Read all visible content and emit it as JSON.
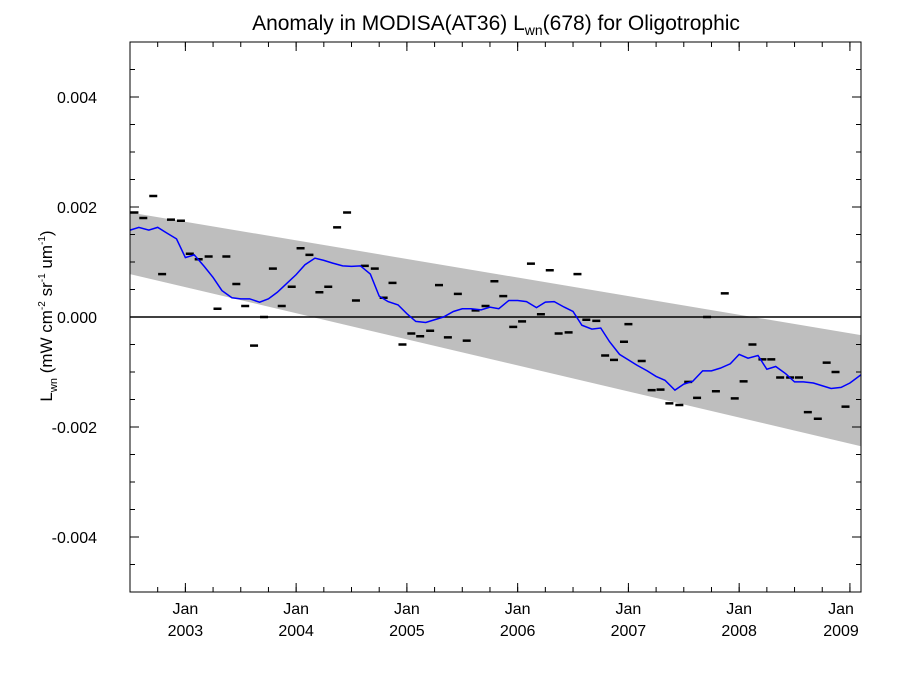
{
  "chart_data": {
    "type": "line",
    "title": "Anomaly in MODISA(AT36) L",
    "title_sub": "wn",
    "title_tail": "(678) for Oligotrophic",
    "ylabel": {
      "main": "L",
      "main_sub": "wn",
      "unit_open": " (mW cm",
      "unit_exp1": "-2",
      "unit_mid": " sr",
      "unit_exp2": "-1",
      "unit_tail": " um",
      "unit_exp3": "-1",
      "unit_close": ")"
    },
    "xlim": [
      2002.5,
      2009.1
    ],
    "ylim": [
      -0.005,
      0.005
    ],
    "y_ticks": [
      -0.004,
      -0.002,
      0.0,
      0.002,
      0.004
    ],
    "y_tick_labels": [
      "-0.004",
      "-0.002",
      "0.000",
      "0.002",
      "0.004"
    ],
    "x_ticks": [
      {
        "x": 2003,
        "month": "Jan",
        "year": "2003"
      },
      {
        "x": 2004,
        "month": "Jan",
        "year": "2004"
      },
      {
        "x": 2005,
        "month": "Jan",
        "year": "2005"
      },
      {
        "x": 2006,
        "month": "Jan",
        "year": "2006"
      },
      {
        "x": 2007,
        "month": "Jan",
        "year": "2007"
      },
      {
        "x": 2008,
        "month": "Jan",
        "year": "2008"
      },
      {
        "x": 2009,
        "month": "Jan",
        "year": "2009"
      }
    ],
    "minor_x_step": 0.25,
    "minor_y_step": 0.0005,
    "band": {
      "x": [
        2002.5,
        2009.1
      ],
      "upper": [
        0.0019,
        -0.00033
      ],
      "lower": [
        0.00078,
        -0.00235
      ],
      "color": "#bebebe"
    },
    "zero_line": 0.0,
    "monthly_anomalies": {
      "color": "#000000",
      "points": [
        [
          2002.54,
          0.0019
        ],
        [
          2002.62,
          0.0018
        ],
        [
          2002.71,
          0.0022
        ],
        [
          2002.79,
          0.00078
        ],
        [
          2002.87,
          0.00177
        ],
        [
          2002.96,
          0.00175
        ],
        [
          2003.04,
          0.00115
        ],
        [
          2003.12,
          0.00105
        ],
        [
          2003.21,
          0.0011
        ],
        [
          2003.29,
          0.00015
        ],
        [
          2003.37,
          0.0011
        ],
        [
          2003.46,
          0.0006
        ],
        [
          2003.54,
          0.0002
        ],
        [
          2003.62,
          -0.00052
        ],
        [
          2003.71,
          0.0
        ],
        [
          2003.79,
          0.00088
        ],
        [
          2003.87,
          0.0002
        ],
        [
          2003.96,
          0.00055
        ],
        [
          2004.04,
          0.00125
        ],
        [
          2004.12,
          0.00113
        ],
        [
          2004.21,
          0.00045
        ],
        [
          2004.29,
          0.00055
        ],
        [
          2004.37,
          0.00163
        ],
        [
          2004.46,
          0.0019
        ],
        [
          2004.54,
          0.0003
        ],
        [
          2004.62,
          0.00093
        ],
        [
          2004.71,
          0.00088
        ],
        [
          2004.79,
          0.00035
        ],
        [
          2004.87,
          0.00062
        ],
        [
          2004.96,
          -0.0005
        ],
        [
          2005.04,
          -0.0003
        ],
        [
          2005.12,
          -0.00035
        ],
        [
          2005.21,
          -0.00025
        ],
        [
          2005.29,
          0.00058
        ],
        [
          2005.37,
          -0.00037
        ],
        [
          2005.46,
          0.00042
        ],
        [
          2005.54,
          -0.00043
        ],
        [
          2005.62,
          0.00012
        ],
        [
          2005.71,
          0.0002
        ],
        [
          2005.79,
          0.00065
        ],
        [
          2005.87,
          0.00038
        ],
        [
          2005.96,
          -0.00018
        ],
        [
          2006.04,
          -8e-05
        ],
        [
          2006.12,
          0.00097
        ],
        [
          2006.21,
          5e-05
        ],
        [
          2006.29,
          0.00085
        ],
        [
          2006.37,
          -0.0003
        ],
        [
          2006.46,
          -0.00028
        ],
        [
          2006.54,
          0.00078
        ],
        [
          2006.62,
          -5e-05
        ],
        [
          2006.71,
          -7e-05
        ],
        [
          2006.79,
          -0.0007
        ],
        [
          2006.87,
          -0.00078
        ],
        [
          2006.96,
          -0.00045
        ],
        [
          2007.0,
          -0.00013
        ],
        [
          2007.12,
          -0.0008
        ],
        [
          2007.21,
          -0.00133
        ],
        [
          2007.29,
          -0.00132
        ],
        [
          2007.37,
          -0.00157
        ],
        [
          2007.46,
          -0.0016
        ],
        [
          2007.54,
          -0.00118
        ],
        [
          2007.62,
          -0.00147
        ],
        [
          2007.71,
          -0.0
        ],
        [
          2007.79,
          -0.00135
        ],
        [
          2007.87,
          0.00043
        ],
        [
          2007.96,
          -0.00148
        ],
        [
          2008.04,
          -0.00117
        ],
        [
          2008.12,
          -0.0005
        ],
        [
          2008.21,
          -0.00077
        ],
        [
          2008.29,
          -0.00077
        ],
        [
          2008.37,
          -0.0011
        ],
        [
          2008.46,
          -0.0011
        ],
        [
          2008.54,
          -0.0011
        ],
        [
          2008.62,
          -0.00173
        ],
        [
          2008.71,
          -0.00185
        ],
        [
          2008.79,
          -0.00083
        ],
        [
          2008.87,
          -0.001
        ],
        [
          2008.96,
          -0.00163
        ]
      ]
    },
    "smoothed_series": {
      "color": "#0000ff",
      "x": [
        2002.5,
        2002.58,
        2002.67,
        2002.75,
        2002.83,
        2002.92,
        2003.0,
        2003.08,
        2003.17,
        2003.25,
        2003.33,
        2003.42,
        2003.5,
        2003.58,
        2003.67,
        2003.75,
        2003.83,
        2003.92,
        2004.0,
        2004.08,
        2004.17,
        2004.25,
        2004.33,
        2004.42,
        2004.5,
        2004.58,
        2004.67,
        2004.75,
        2004.83,
        2004.92,
        2005.0,
        2005.08,
        2005.17,
        2005.25,
        2005.33,
        2005.42,
        2005.5,
        2005.58,
        2005.67,
        2005.75,
        2005.83,
        2005.92,
        2006.0,
        2006.08,
        2006.17,
        2006.25,
        2006.33,
        2006.42,
        2006.5,
        2006.58,
        2006.67,
        2006.75,
        2006.83,
        2006.92,
        2007.0,
        2007.08,
        2007.17,
        2007.25,
        2007.33,
        2007.42,
        2007.5,
        2007.58,
        2007.67,
        2007.75,
        2007.83,
        2007.92,
        2008.0,
        2008.08,
        2008.17,
        2008.25,
        2008.33,
        2008.42,
        2008.5,
        2008.58,
        2008.67,
        2008.75,
        2008.83,
        2008.92,
        2009.0,
        2009.1
      ],
      "y": [
        0.00158,
        0.00163,
        0.00158,
        0.00163,
        0.00153,
        0.00142,
        0.00108,
        0.00113,
        0.00092,
        0.00072,
        0.00048,
        0.00035,
        0.00033,
        0.00033,
        0.00027,
        0.00033,
        0.00045,
        0.00062,
        0.00077,
        0.00095,
        0.00107,
        0.00103,
        0.00098,
        0.00093,
        0.00092,
        0.00093,
        0.00078,
        0.00038,
        0.00028,
        0.00022,
        6e-05,
        -8e-05,
        -0.0001,
        -5e-05,
        0.0,
        0.0001,
        0.00015,
        0.00015,
        0.00013,
        0.00018,
        0.00015,
        0.0003,
        0.0003,
        0.00028,
        0.00017,
        0.00027,
        0.00028,
        0.00018,
        0.0001,
        -0.00015,
        -0.00022,
        -0.0002,
        -0.00045,
        -0.00068,
        -0.00078,
        -0.00088,
        -0.00098,
        -0.00108,
        -0.00115,
        -0.00133,
        -0.00122,
        -0.00117,
        -0.00098,
        -0.00098,
        -0.00093,
        -0.00085,
        -0.00068,
        -0.00075,
        -0.0007,
        -0.00095,
        -0.0009,
        -0.00103,
        -0.00118,
        -0.00118,
        -0.0012,
        -0.00125,
        -0.0013,
        -0.00128,
        -0.0012,
        -0.00105
      ]
    }
  }
}
